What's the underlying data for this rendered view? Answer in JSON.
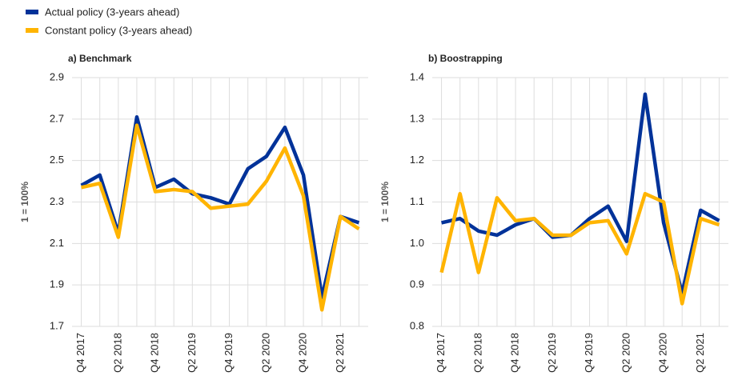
{
  "chart_data": [
    {
      "type": "line",
      "title": "a) Benchmark",
      "y_label": "1 = 100%",
      "categories": [
        "Q4 2017",
        null,
        "Q2 2018",
        null,
        "Q4 2018",
        null,
        "Q2 2019",
        null,
        "Q4 2019",
        null,
        "Q2 2020",
        null,
        "Q4 2020",
        null,
        "Q2 2021",
        null
      ],
      "series": [
        {
          "name": "Actual policy (3-years ahead)",
          "color": "#003299",
          "values": [
            2.38,
            2.43,
            2.15,
            2.71,
            2.37,
            2.41,
            2.34,
            2.32,
            2.29,
            2.46,
            2.52,
            2.66,
            2.43,
            1.84,
            2.23,
            2.2
          ]
        },
        {
          "name": "Constant policy (3-years ahead)",
          "color": "#FFB400",
          "values": [
            2.37,
            2.39,
            2.13,
            2.67,
            2.35,
            2.36,
            2.35,
            2.27,
            2.28,
            2.29,
            2.4,
            2.56,
            2.33,
            1.78,
            2.23,
            2.17
          ]
        }
      ],
      "ylim": [
        1.7,
        2.9
      ],
      "yticks": [
        1.7,
        1.9,
        2.1,
        2.3,
        2.5,
        2.7,
        2.9
      ],
      "grid": true
    },
    {
      "type": "line",
      "title": "b) Boostrapping",
      "y_label": "1 = 100%",
      "categories": [
        "Q4 2017",
        null,
        "Q2 2018",
        null,
        "Q4 2018",
        null,
        "Q2 2019",
        null,
        "Q4 2019",
        null,
        "Q2 2020",
        null,
        "Q4 2020",
        null,
        "Q2 2021",
        null
      ],
      "series": [
        {
          "name": "Actual policy (3-years ahead)",
          "color": "#003299",
          "values": [
            1.05,
            1.06,
            1.03,
            1.02,
            1.045,
            1.06,
            1.015,
            1.02,
            1.06,
            1.09,
            1.005,
            1.36,
            1.05,
            0.88,
            1.08,
            1.055
          ]
        },
        {
          "name": "Constant policy (3-years ahead)",
          "color": "#FFB400",
          "values": [
            0.93,
            1.12,
            0.93,
            1.11,
            1.055,
            1.06,
            1.02,
            1.02,
            1.05,
            1.055,
            0.975,
            1.12,
            1.1,
            0.855,
            1.06,
            1.045
          ]
        }
      ],
      "ylim": [
        0.8,
        1.4
      ],
      "yticks": [
        0.8,
        {
          "value": 0.9,
          "label": "0.9"
        },
        {
          "value": 1.0,
          "label": "1.0"
        },
        1.1,
        1.2,
        1.3,
        1.4
      ],
      "grid": true
    }
  ]
}
